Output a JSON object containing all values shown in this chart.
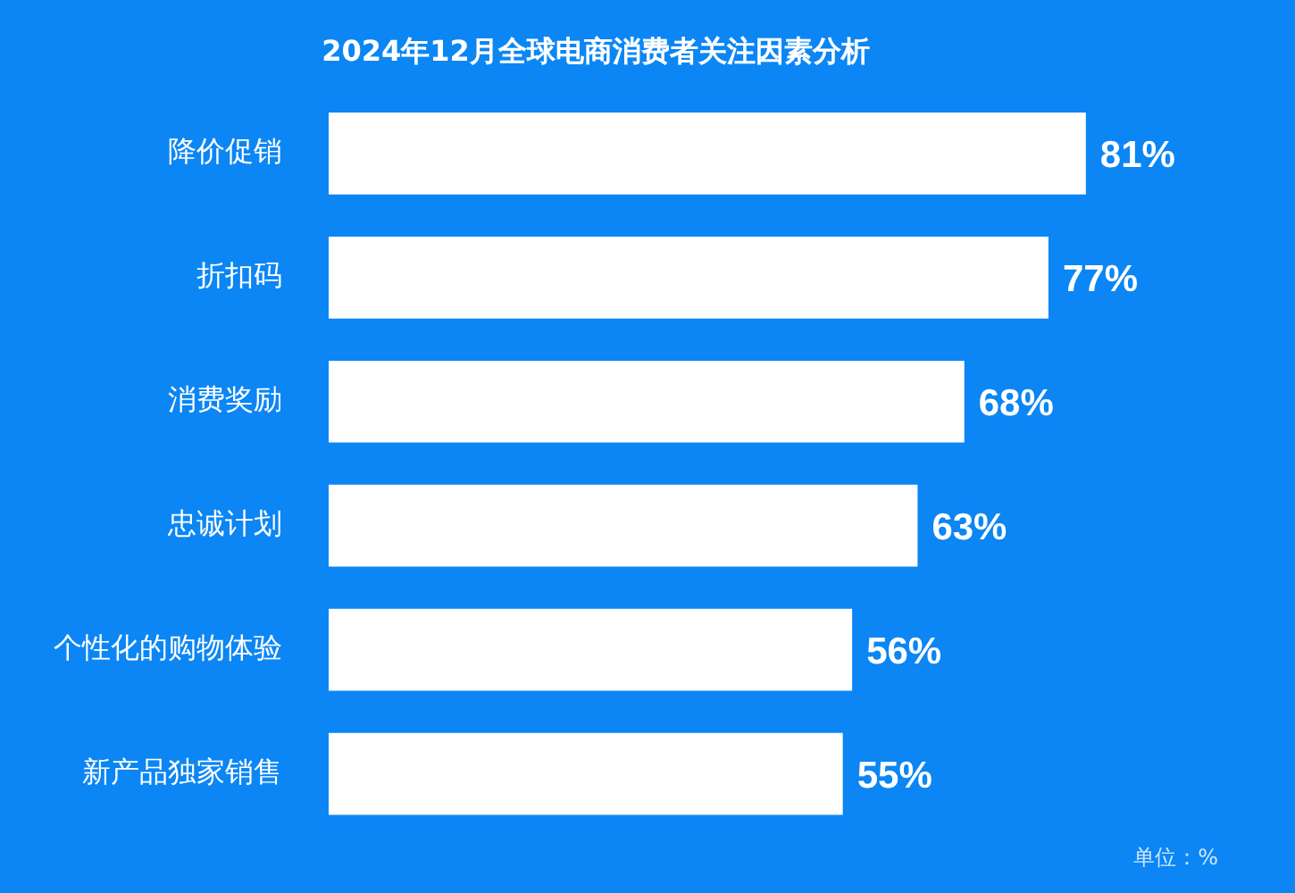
{
  "chart_data": {
    "type": "bar",
    "orientation": "horizontal",
    "title": "2024年12月全球电商消费者关注因素分析",
    "categories": [
      "降价促销",
      "折扣码",
      "消费奖励",
      "忠诚计划",
      "个性化的购物体验",
      "新产品独家销售"
    ],
    "values": [
      81,
      77,
      68,
      63,
      56,
      55
    ],
    "value_labels": [
      "81%",
      "77%",
      "68%",
      "63%",
      "56%",
      "55%"
    ],
    "color": "#ffffff",
    "tick_labels": "y",
    "grid": false,
    "legend": false,
    "annotations": [
      "单位：%"
    ]
  }
}
